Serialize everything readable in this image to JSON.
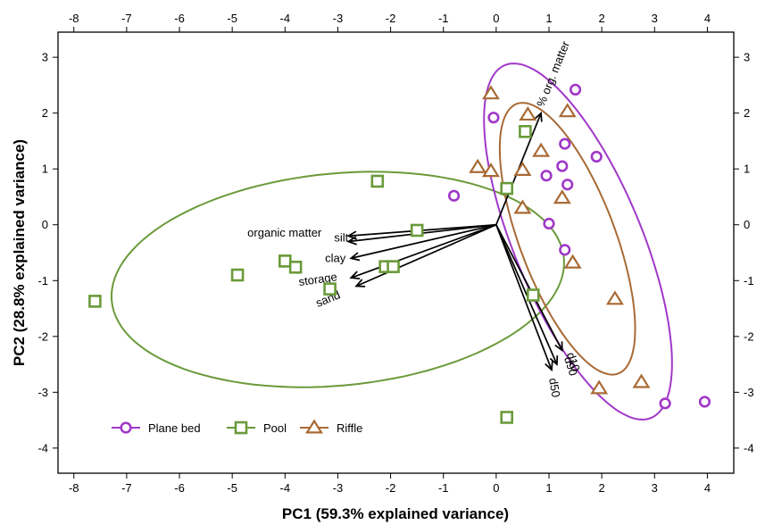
{
  "chart_data": {
    "type": "scatter",
    "title": "",
    "xlabel": "PC1 (59.3% explained variance)",
    "ylabel": "PC2 (28.8% explained variance)",
    "xlim": [
      -8.3,
      4.5
    ],
    "ylim": [
      -4.45,
      3.45
    ],
    "xticks": [
      -8,
      -7,
      -6,
      -5,
      -4,
      -3,
      -2,
      -1,
      0,
      1,
      2,
      3,
      4
    ],
    "yticks": [
      -4,
      -3,
      -2,
      -1,
      0,
      1,
      2,
      3
    ],
    "grid": false,
    "legend_position": "bottom-left",
    "series": [
      {
        "name": "Plane bed",
        "marker": "circle",
        "color": "#a038c8",
        "points": [
          [
            -0.8,
            0.52
          ],
          [
            -0.05,
            1.92
          ],
          [
            0.95,
            0.88
          ],
          [
            1.0,
            0.02
          ],
          [
            1.25,
            1.05
          ],
          [
            1.3,
            -0.45
          ],
          [
            1.3,
            1.45
          ],
          [
            1.35,
            0.72
          ],
          [
            1.5,
            2.42
          ],
          [
            1.9,
            1.22
          ],
          [
            3.2,
            -3.2
          ],
          [
            3.95,
            -3.17
          ]
        ]
      },
      {
        "name": "Pool",
        "marker": "square",
        "color": "#6a9a3a",
        "points": [
          [
            -7.6,
            -1.37
          ],
          [
            -4.9,
            -0.9
          ],
          [
            -4.0,
            -0.65
          ],
          [
            -3.8,
            -0.76
          ],
          [
            -3.15,
            -1.15
          ],
          [
            -2.25,
            0.78
          ],
          [
            -2.1,
            -0.75
          ],
          [
            -1.95,
            -0.75
          ],
          [
            -1.5,
            -0.1
          ],
          [
            0.2,
            0.65
          ],
          [
            0.55,
            1.67
          ],
          [
            0.7,
            -1.26
          ],
          [
            0.2,
            -3.45
          ]
        ]
      },
      {
        "name": "Riffle",
        "marker": "triangle",
        "color": "#a86a35",
        "points": [
          [
            -0.1,
            2.35
          ],
          [
            0.6,
            1.97
          ],
          [
            1.35,
            2.03
          ],
          [
            0.85,
            1.32
          ],
          [
            -0.35,
            1.03
          ],
          [
            -0.1,
            0.96
          ],
          [
            0.5,
            0.98
          ],
          [
            0.5,
            0.3
          ],
          [
            1.25,
            0.48
          ],
          [
            1.45,
            -0.68
          ],
          [
            2.25,
            -1.33
          ],
          [
            1.95,
            -2.93
          ],
          [
            2.75,
            -2.82
          ]
        ]
      }
    ],
    "ellipses": [
      {
        "series": "Pool",
        "color": "#6a9a3a",
        "center": [
          -3.0,
          -0.98
        ],
        "semi_axes": [
          4.3,
          1.9
        ],
        "angle_deg": 5
      },
      {
        "series": "Plane bed",
        "color": "#a038c8",
        "center": [
          1.55,
          -0.3
        ],
        "semi_axes": [
          1.2,
          3.45
        ],
        "angle_deg": 24
      },
      {
        "series": "Riffle",
        "color": "#a86a35",
        "center": [
          1.35,
          -0.25
        ],
        "semi_axes": [
          0.9,
          2.6
        ],
        "angle_deg": 22
      }
    ],
    "loadings": {
      "origin": [
        0,
        0
      ],
      "arrows": [
        {
          "label": "% org. matter",
          "end": [
            0.85,
            2.0
          ]
        },
        {
          "label": "organic matter",
          "end": [
            -2.8,
            -0.2
          ]
        },
        {
          "label": "silt",
          "end": [
            -2.8,
            -0.3
          ]
        },
        {
          "label": "clay",
          "end": [
            -2.75,
            -0.6
          ]
        },
        {
          "label": "storage",
          "end": [
            -2.75,
            -0.95
          ]
        },
        {
          "label": "sand",
          "end": [
            -2.65,
            -1.1
          ]
        },
        {
          "label": "d10",
          "end": [
            1.25,
            -2.25
          ]
        },
        {
          "label": "d90",
          "end": [
            1.15,
            -2.5
          ]
        },
        {
          "label": "d50",
          "end": [
            1.05,
            -2.6
          ]
        }
      ]
    }
  }
}
